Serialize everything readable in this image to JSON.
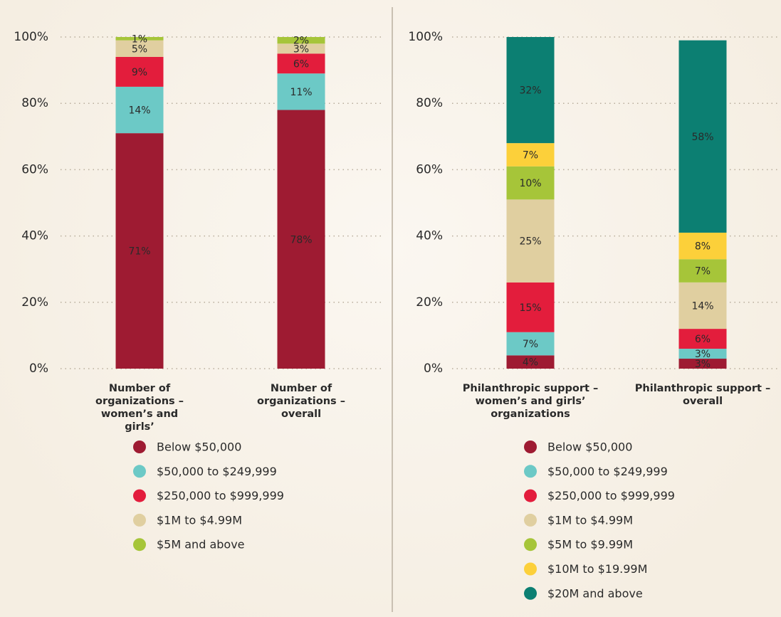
{
  "chart_data": [
    {
      "type": "bar",
      "stacked": true,
      "categories": [
        "Number of organizations – women’s and girls’",
        "Number of organizations – overall"
      ],
      "ylim": [
        0,
        100
      ],
      "yticks": [
        {
          "value": 0,
          "label": "0%"
        },
        {
          "value": 20,
          "label": "20%"
        },
        {
          "value": 40,
          "label": "40%"
        },
        {
          "value": 60,
          "label": "60%"
        },
        {
          "value": 80,
          "label": "80%"
        },
        {
          "value": 100,
          "label": "100%"
        }
      ],
      "grid": true,
      "series": [
        {
          "name": "Below $50,000",
          "color": "#9e1b32",
          "values": [
            71,
            78
          ],
          "value_labels": [
            "71%",
            "78%"
          ]
        },
        {
          "name": "$50,000 to $249,999",
          "color": "#6cc9c6",
          "values": [
            14,
            11
          ],
          "value_labels": [
            "14%",
            "11%"
          ]
        },
        {
          "name": "$250,000 to $999,999",
          "color": "#e31d3c",
          "values": [
            9,
            6
          ],
          "value_labels": [
            "9%",
            "6%"
          ]
        },
        {
          "name": "$1M to $4.99M",
          "color": "#e0cfa0",
          "values": [
            5,
            3
          ],
          "value_labels": [
            "5%",
            "3%"
          ]
        },
        {
          "name": "$5M and above",
          "color": "#a6c539",
          "values": [
            1,
            2
          ],
          "value_labels": [
            "1%",
            "2%"
          ]
        }
      ]
    },
    {
      "type": "bar",
      "stacked": true,
      "categories": [
        "Philanthropic support – women’s and girls’ organizations",
        "Philanthropic support – overall"
      ],
      "ylim": [
        0,
        100
      ],
      "yticks": [
        {
          "value": 0,
          "label": "0%"
        },
        {
          "value": 20,
          "label": "20%"
        },
        {
          "value": 40,
          "label": "40%"
        },
        {
          "value": 60,
          "label": "60%"
        },
        {
          "value": 80,
          "label": "80%"
        },
        {
          "value": 100,
          "label": "100%"
        }
      ],
      "grid": true,
      "series": [
        {
          "name": "Below $50,000",
          "color": "#9e1b32",
          "values": [
            4,
            3
          ],
          "value_labels": [
            "4%",
            "3%"
          ]
        },
        {
          "name": "$50,000 to $249,999",
          "color": "#6cc9c6",
          "values": [
            7,
            3
          ],
          "value_labels": [
            "7%",
            "3%"
          ]
        },
        {
          "name": "$250,000 to $999,999",
          "color": "#e31d3c",
          "values": [
            15,
            6
          ],
          "value_labels": [
            "15%",
            "6%"
          ]
        },
        {
          "name": "$1M to $4.99M",
          "color": "#e0cfa0",
          "values": [
            25,
            14
          ],
          "value_labels": [
            "25%",
            "14%"
          ]
        },
        {
          "name": "$5M to $9.99M",
          "color": "#a6c539",
          "values": [
            10,
            7
          ],
          "value_labels": [
            "10%",
            "7%"
          ]
        },
        {
          "name": "$10M to $19.99M",
          "color": "#fcd03a",
          "values": [
            7,
            8
          ],
          "value_labels": [
            "7%",
            "8%"
          ]
        },
        {
          "name": "$20M and above",
          "color": "#0c7f72",
          "values": [
            32,
            58
          ],
          "value_labels": [
            "32%",
            "58%"
          ]
        }
      ]
    }
  ]
}
